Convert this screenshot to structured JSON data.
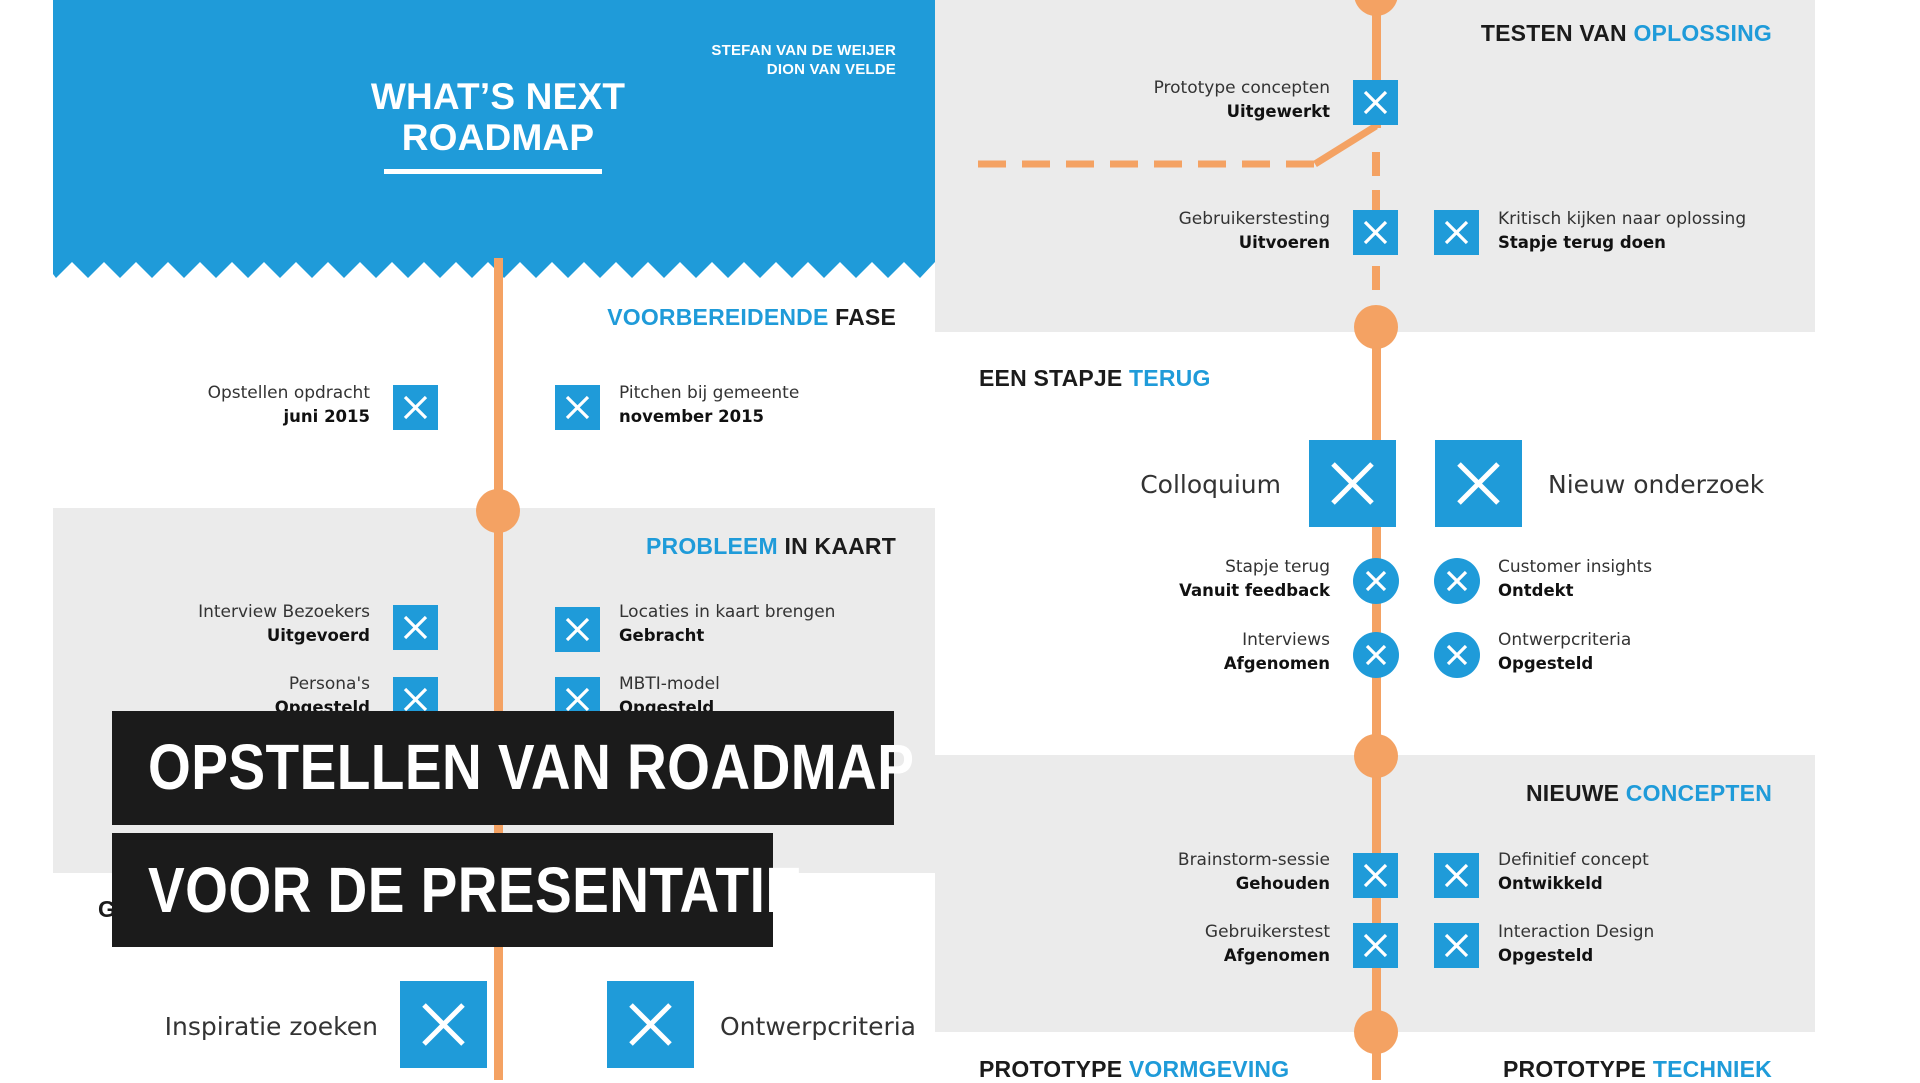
{
  "header": {
    "title_line1": "WHAT’S NEXT",
    "title_line2": "ROADMAP",
    "author1": "STEFAN VAN DE WEIJER",
    "author2": "DION VAN VELDE"
  },
  "left": {
    "s1": {
      "title_a": "VOORBEREIDENDE",
      "title_b": "FASE",
      "i1_l1": "Opstellen opdracht",
      "i1_l2": "juni 2015",
      "i2_l1": "Pitchen bij gemeente",
      "i2_l2": "november 2015"
    },
    "s2": {
      "title_a": "PROBLEEM",
      "title_b": "IN KAART",
      "i1_l1": "Interview Bezoekers",
      "i1_l2": "Uitgevoerd",
      "i2_l1": "Locaties in kaart brengen",
      "i2_l2": "Gebracht",
      "i3_l1": "Persona's",
      "i3_l2": "Opgesteld",
      "i4_l1": "MBTI-model",
      "i4_l2": "Opgesteld"
    },
    "s3": {
      "title_visible": "GENE",
      "title_tail": "N",
      "big1": "Inspiratie zoeken",
      "big2": "Ontwerpcriteria"
    }
  },
  "right": {
    "s1": {
      "title_a": "TESTEN VAN",
      "title_b": "OPLOSSING",
      "i1_l1": "Prototype concepten",
      "i1_l2": "Uitgewerkt",
      "i2_l1": "Gebruikerstesting",
      "i2_l2": "Uitvoeren",
      "i3_l1": "Kritisch kijken naar oplossing",
      "i3_l2": "Stapje terug doen"
    },
    "s2": {
      "title_a": "EEN STAPJE",
      "title_b": "TERUG",
      "big1": "Colloquium",
      "big2": "Nieuw onderzoek",
      "i1_l1": "Stapje terug",
      "i1_l2": "Vanuit feedback",
      "i2_l1": "Customer insights",
      "i2_l2": "Ontdekt",
      "i3_l1": "Interviews",
      "i3_l2": "Afgenomen",
      "i4_l1": "Ontwerpcriteria",
      "i4_l2": "Opgesteld"
    },
    "s3": {
      "title_a": "NIEUWE",
      "title_b": "CONCEPTEN",
      "i1_l1": "Brainstorm-sessie",
      "i1_l2": "Gehouden",
      "i2_l1": "Definitief concept",
      "i2_l2": "Ontwikkeld",
      "i3_l1": "Gebruikerstest",
      "i3_l2": "Afgenomen",
      "i4_l1": "Interaction Design",
      "i4_l2": "Opgesteld"
    },
    "s4": {
      "a_title_a": "PROTOTYPE",
      "a_title_b": "VORMGEVING",
      "b_title_a": "PROTOTYPE",
      "b_title_b": "TECHNIEK"
    }
  },
  "overlay": {
    "line1": "OPSTELLEN VAN ROADMAP",
    "line2": "VOOR DE PRESENTATIE"
  },
  "colors": {
    "blue": "#1f9bd9",
    "orange": "#f4a263",
    "gray": "#ebebeb",
    "dark": "#1b1b1b"
  },
  "icons": {
    "check": "cross-mark-icon"
  }
}
